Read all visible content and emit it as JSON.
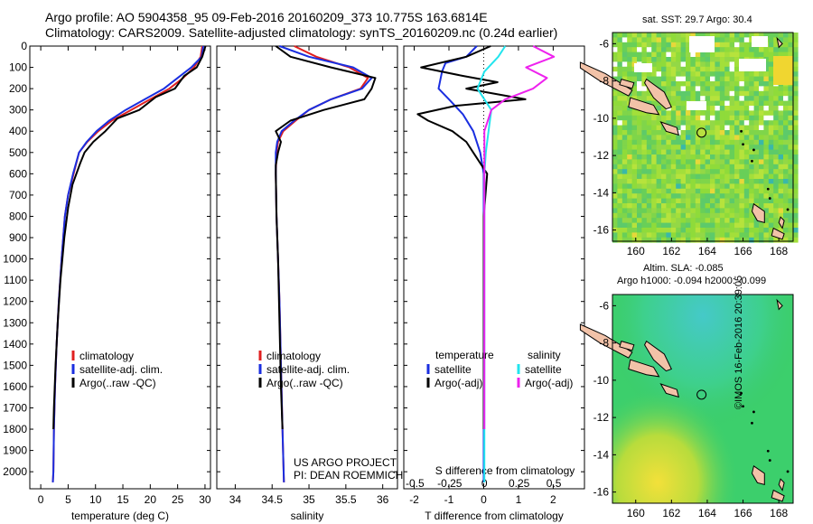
{
  "header": {
    "line1": "Argo profile: AO 5904358_95 09-Feb-2016 20160209_373 10.775S 163.6814E",
    "line2": "Climatology: CARS2009. Satellite-adjusted climatology: synTS_20160209.nc (0.24d earlier)"
  },
  "project": {
    "line1": "US ARGO PROJECT",
    "line2": "PI: DEAN ROEMMICH"
  },
  "watermark": "©IMOS 16-Feb-2016 20:39:05",
  "colors": {
    "climatology": "#e02020",
    "satellite": "#1a2ee0",
    "argo": "#000000",
    "sal_satellite": "#22e5ee",
    "sal_argo": "#ee22ee"
  },
  "chart_data": [
    {
      "type": "line",
      "xlabel": "temperature (deg C)",
      "ylabel": "",
      "xlim": [
        -2,
        31
      ],
      "ylim": [
        2080,
        0
      ],
      "xticks": [
        0,
        5,
        10,
        15,
        20,
        25,
        30
      ],
      "yticks": [
        0,
        100,
        200,
        300,
        400,
        500,
        600,
        700,
        800,
        900,
        1000,
        1100,
        1200,
        1300,
        1400,
        1500,
        1600,
        1700,
        1800,
        1900,
        2000
      ],
      "legend": [
        "climatology",
        "satellite-adj. clim.",
        "Argo(..raw -QC)"
      ],
      "legend_position": "lower-center",
      "series": [
        {
          "name": "climatology",
          "color": "#e02020",
          "x": [
            29.5,
            29.2,
            28.0,
            26.0,
            23.5,
            20.0,
            16.5,
            13.0,
            10.5,
            8.5,
            7.0,
            6.0,
            5.0,
            4.4,
            3.8,
            3.3,
            2.9,
            2.6,
            2.4,
            2.3,
            2.2
          ],
          "y": [
            0,
            50,
            100,
            150,
            200,
            250,
            300,
            350,
            400,
            450,
            500,
            600,
            700,
            800,
            1000,
            1200,
            1400,
            1600,
            1800,
            2000,
            2050
          ]
        },
        {
          "name": "satellite-adj. clim.",
          "color": "#1a2ee0",
          "x": [
            29.7,
            29.4,
            27.5,
            25.0,
            22.5,
            19.0,
            15.5,
            12.5,
            10.2,
            8.4,
            7.0,
            5.9,
            5.0,
            4.4,
            3.8,
            3.3,
            2.9,
            2.6,
            2.4,
            2.3,
            2.2
          ],
          "y": [
            0,
            50,
            100,
            150,
            200,
            250,
            300,
            350,
            400,
            450,
            500,
            600,
            700,
            800,
            1000,
            1200,
            1400,
            1600,
            1800,
            2000,
            2050
          ]
        },
        {
          "name": "Argo(..raw -QC)",
          "color": "#000000",
          "x": [
            30.1,
            29.5,
            28.5,
            26.2,
            24.5,
            21.0,
            18.0,
            14.0,
            11.8,
            9.6,
            8.0,
            7.2,
            5.8,
            5.0,
            4.3,
            3.6,
            3.1,
            2.7,
            2.4,
            2.3
          ],
          "y": [
            0,
            50,
            100,
            140,
            200,
            240,
            300,
            340,
            400,
            450,
            500,
            550,
            650,
            760,
            900,
            1100,
            1300,
            1500,
            1700,
            1800
          ]
        }
      ]
    },
    {
      "type": "line",
      "xlabel": "salinity",
      "ylabel": "",
      "xlim": [
        33.75,
        36.2
      ],
      "ylim": [
        2080,
        0
      ],
      "xticks": [
        34,
        34.5,
        35,
        35.5,
        36
      ],
      "legend": [
        "climatology",
        "satellite-adj. clim.",
        "Argo(..raw -QC)"
      ],
      "legend_position": "lower-center",
      "series": [
        {
          "name": "climatology",
          "color": "#e02020",
          "x": [
            34.8,
            35.1,
            35.55,
            35.8,
            35.7,
            35.3,
            35.0,
            34.82,
            34.65,
            34.58,
            34.56,
            34.55,
            34.56,
            34.58,
            34.6,
            34.62,
            34.64,
            34.66
          ],
          "y": [
            0,
            50,
            100,
            150,
            200,
            250,
            300,
            350,
            400,
            450,
            500,
            600,
            800,
            1000,
            1200,
            1500,
            1800,
            2050
          ]
        },
        {
          "name": "satellite-adj. clim.",
          "color": "#1a2ee0",
          "x": [
            34.6,
            35.0,
            35.6,
            35.85,
            35.72,
            35.3,
            35.0,
            34.8,
            34.63,
            34.57,
            34.55,
            34.55,
            34.56,
            34.58,
            34.6,
            34.62,
            34.64,
            34.66
          ],
          "y": [
            0,
            50,
            100,
            150,
            200,
            250,
            300,
            350,
            400,
            450,
            500,
            600,
            800,
            1000,
            1200,
            1500,
            1800,
            2050
          ]
        },
        {
          "name": "Argo(..raw -QC)",
          "color": "#000000",
          "x": [
            34.55,
            34.75,
            35.3,
            35.9,
            35.85,
            35.75,
            35.2,
            34.75,
            34.55,
            34.62,
            34.58,
            34.55,
            34.55,
            34.56,
            34.58,
            34.6,
            34.62,
            34.64
          ],
          "y": [
            0,
            50,
            100,
            150,
            200,
            250,
            300,
            350,
            400,
            450,
            500,
            560,
            600,
            800,
            1000,
            1300,
            1600,
            1800
          ]
        }
      ]
    },
    {
      "type": "line",
      "xlabel": "T difference from climatology",
      "x2label": "S difference from climatology",
      "xlim": [
        -2.3,
        2.9
      ],
      "x2lim": [
        -0.58,
        0.72
      ],
      "ylim": [
        2080,
        0
      ],
      "xticks": [
        -2,
        -1,
        0,
        1,
        2
      ],
      "x2ticks": [
        -0.5,
        -0.25,
        0,
        0.25,
        0.5
      ],
      "legend_headings": [
        "temperature",
        "salinity"
      ],
      "legend": [
        "satellite",
        "Argo(-adj)",
        "satellite",
        "Argo(-adj)"
      ],
      "legend_position": "lower-center",
      "series": [
        {
          "name": "satellite",
          "quantity": "temperature",
          "color": "#1a2ee0",
          "x": [
            -0.2,
            -0.5,
            -1.1,
            -1.2,
            -1.3,
            -1.0,
            -0.6,
            -0.3,
            -0.1,
            0.0,
            0.0,
            0.0
          ],
          "y": [
            0,
            50,
            80,
            120,
            200,
            250,
            320,
            400,
            500,
            600,
            800,
            2050
          ]
        },
        {
          "name": "Argo(-adj)",
          "quantity": "temperature",
          "color": "#000000",
          "x": [
            0.2,
            -0.5,
            -1.8,
            -0.6,
            0.4,
            -0.5,
            1.2,
            -0.8,
            -1.9,
            -1.6,
            -0.9,
            -0.5,
            -0.3,
            0.1,
            0.0,
            0.0
          ],
          "y": [
            0,
            50,
            100,
            140,
            170,
            200,
            250,
            280,
            320,
            350,
            400,
            450,
            500,
            600,
            800,
            1800
          ]
        },
        {
          "name": "satellite",
          "quantity": "salinity",
          "color": "#22e5ee",
          "x": [
            0.15,
            0.1,
            0.0,
            -0.05,
            0.0,
            0.05,
            0.03,
            0.01,
            0.0,
            0.0
          ],
          "y": [
            0,
            50,
            120,
            200,
            250,
            300,
            400,
            500,
            600,
            2050
          ]
        },
        {
          "name": "Argo(-adj)",
          "quantity": "salinity",
          "color": "#ee22ee",
          "x": [
            0.35,
            0.5,
            0.3,
            0.45,
            0.35,
            0.15,
            0.05,
            0.0,
            0.0,
            0.0
          ],
          "y": [
            0,
            50,
            100,
            150,
            200,
            250,
            300,
            400,
            600,
            1800
          ]
        }
      ]
    }
  ],
  "maps": {
    "sst": {
      "title": "sat. SST: 29.7  Argo: 30.4",
      "xticks": [
        160,
        162,
        164,
        166,
        168
      ],
      "yticks": [
        -6,
        -8,
        -10,
        -12,
        -14,
        -16
      ],
      "xlim": [
        158.7,
        168.8
      ],
      "ylim": [
        -16.6,
        -5.4
      ],
      "marker": {
        "lon": 163.68,
        "lat": -10.775
      }
    },
    "sla": {
      "title_line1": "Altim. SLA: -0.085",
      "title_line2": "Argo h1000: -0.094  h2000: -0.099",
      "xticks": [
        160,
        162,
        164,
        166,
        168
      ],
      "yticks": [
        -6,
        -8,
        -10,
        -12,
        -14,
        -16
      ],
      "xlim": [
        158.7,
        168.8
      ],
      "ylim": [
        -16.6,
        -5.4
      ],
      "marker": {
        "lon": 163.68,
        "lat": -10.775
      }
    }
  }
}
